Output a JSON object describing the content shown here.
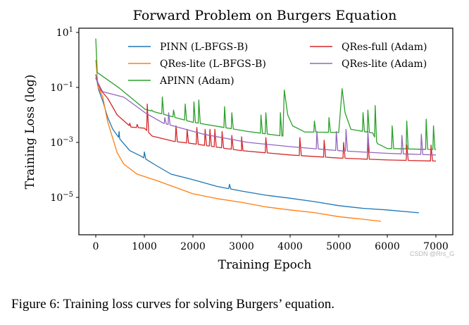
{
  "chart_data": {
    "type": "line",
    "title": "Forward Problem on Burgers Equation",
    "xlabel": "Training Epoch",
    "ylabel": "Training Loss (log)",
    "xlim": [
      -350,
      7250
    ],
    "ylim": [
      4.7e-07,
      14
    ],
    "yscale": "log",
    "grid": false,
    "legend_placement": "top",
    "xticks": [
      0,
      1000,
      2000,
      3000,
      4000,
      5000,
      6000,
      7000
    ],
    "yticks": [
      {
        "value": 10,
        "label": "10^1"
      },
      {
        "value": 0.1,
        "label": "10^-1"
      },
      {
        "value": 0.001,
        "label": "10^-3"
      },
      {
        "value": 1e-05,
        "label": "10^-5"
      }
    ],
    "series": [
      {
        "name": "PINN (L-BFGS-B)",
        "color": "#1f77b4",
        "points": [
          [
            0,
            0.3
          ],
          [
            58,
            0.083
          ],
          [
            150,
            0.03
          ],
          [
            246,
            0.008
          ],
          [
            350,
            0.003
          ],
          [
            493,
            0.00135
          ],
          [
            700,
            0.0005
          ],
          [
            927,
            0.00032
          ],
          [
            1200,
            0.00016
          ],
          [
            1550,
            7e-05
          ],
          [
            2000,
            4.4e-05
          ],
          [
            2500,
            2.5e-05
          ],
          [
            3000,
            1.7e-05
          ],
          [
            3500,
            1.2e-05
          ],
          [
            4000,
            9.3e-06
          ],
          [
            4500,
            7e-06
          ],
          [
            5000,
            5e-06
          ],
          [
            5500,
            4e-06
          ],
          [
            6000,
            3.5e-06
          ],
          [
            6650,
            2.75e-06
          ]
        ],
        "spikes": [
          [
            480,
            0.0025
          ],
          [
            1000,
            0.00045
          ],
          [
            2750,
            3e-05
          ]
        ]
      },
      {
        "name": "QRes-lite (L-BFGS-B)",
        "color": "#ff7f0e",
        "points": [
          [
            0,
            1.0
          ],
          [
            50,
            0.1
          ],
          [
            140,
            0.047
          ],
          [
            246,
            0.0055
          ],
          [
            440,
            0.00042
          ],
          [
            580,
            0.00016
          ],
          [
            850,
            7e-05
          ],
          [
            1270,
            4e-05
          ],
          [
            2000,
            1.35e-05
          ],
          [
            2500,
            9e-06
          ],
          [
            3000,
            6.6e-06
          ],
          [
            3500,
            4.5e-06
          ],
          [
            4000,
            3.5e-06
          ],
          [
            4500,
            2.8e-06
          ],
          [
            5000,
            2e-06
          ],
          [
            5500,
            1.6e-06
          ],
          [
            5870,
            1.35e-06
          ]
        ],
        "spikes": []
      },
      {
        "name": "APINN (Adam)",
        "color": "#2ca02c",
        "points": [
          [
            0,
            6
          ],
          [
            30,
            0.35
          ],
          [
            490,
            0.093
          ],
          [
            1015,
            0.016
          ],
          [
            1980,
            0.0055
          ],
          [
            3130,
            0.0025
          ],
          [
            3850,
            0.0017
          ],
          [
            3880,
            0.08
          ],
          [
            3950,
            0.01
          ],
          [
            4050,
            0.004
          ],
          [
            4300,
            0.0024
          ],
          [
            5000,
            0.0023
          ],
          [
            5070,
            0.09
          ],
          [
            5130,
            0.012
          ],
          [
            5250,
            0.003
          ],
          [
            5700,
            0.0022
          ],
          [
            5800,
            0.0009
          ],
          [
            6000,
            0.0006
          ],
          [
            7000,
            0.00055
          ]
        ],
        "spikes": [
          [
            1150,
            0.015
          ],
          [
            1370,
            0.045
          ],
          [
            1600,
            0.015
          ],
          [
            1840,
            0.025
          ],
          [
            2020,
            0.03
          ],
          [
            2120,
            0.035
          ],
          [
            2650,
            0.02
          ],
          [
            2800,
            0.012
          ],
          [
            3400,
            0.01
          ],
          [
            3500,
            0.012
          ],
          [
            3800,
            0.012
          ],
          [
            4500,
            0.006
          ],
          [
            4800,
            0.008
          ],
          [
            5500,
            0.012
          ],
          [
            5600,
            0.015
          ],
          [
            5750,
            0.022
          ],
          [
            6100,
            0.004
          ],
          [
            6400,
            0.006
          ],
          [
            6800,
            0.007
          ],
          [
            6950,
            0.004
          ]
        ]
      },
      {
        "name": "QRes-full (Adam)",
        "color": "#d62728",
        "points": [
          [
            0,
            0.23
          ],
          [
            100,
            0.08
          ],
          [
            246,
            0.04
          ],
          [
            440,
            0.01
          ],
          [
            725,
            0.0036
          ],
          [
            1000,
            0.0033
          ],
          [
            1160,
            0.0017
          ],
          [
            1600,
            0.0011
          ],
          [
            2000,
            0.0009
          ],
          [
            3000,
            0.0005
          ],
          [
            4000,
            0.00035
          ],
          [
            5000,
            0.00027
          ],
          [
            6000,
            0.00023
          ],
          [
            7000,
            0.00021
          ]
        ],
        "spikes": [
          [
            700,
            0.005
          ],
          [
            850,
            0.0045
          ],
          [
            1060,
            0.025
          ],
          [
            1650,
            0.004
          ],
          [
            1880,
            0.003
          ],
          [
            2080,
            0.0035
          ],
          [
            2250,
            0.003
          ],
          [
            2350,
            0.003
          ],
          [
            2450,
            0.003
          ],
          [
            2600,
            0.0025
          ],
          [
            2800,
            0.0018
          ],
          [
            3000,
            0.0016
          ],
          [
            3500,
            0.0015
          ],
          [
            4200,
            0.0015
          ],
          [
            4700,
            0.0012
          ],
          [
            5100,
            0.001
          ],
          [
            5600,
            0.001
          ],
          [
            6400,
            0.0008
          ],
          [
            6900,
            0.0008
          ]
        ]
      },
      {
        "name": "QRes-lite (Adam)",
        "color": "#9467bd",
        "points": [
          [
            0,
            0.21
          ],
          [
            140,
            0.07
          ],
          [
            580,
            0.044
          ],
          [
            1015,
            0.012
          ],
          [
            1390,
            0.005
          ],
          [
            2210,
            0.002
          ],
          [
            3130,
            0.001
          ],
          [
            4000,
            0.0007
          ],
          [
            5000,
            0.0005
          ],
          [
            6000,
            0.0004
          ],
          [
            7000,
            0.00035
          ]
        ],
        "spikes": [
          [
            1420,
            0.008
          ],
          [
            1500,
            0.012
          ],
          [
            4550,
            0.0025
          ],
          [
            4950,
            0.0025
          ],
          [
            5150,
            0.003
          ],
          [
            5600,
            0.0025
          ],
          [
            6300,
            0.0018
          ],
          [
            6700,
            0.002
          ]
        ]
      }
    ]
  },
  "caption": "Figure 6: Training loss curves for solving Burgers’ equation.",
  "watermark": "CSDN @Rrs_G"
}
